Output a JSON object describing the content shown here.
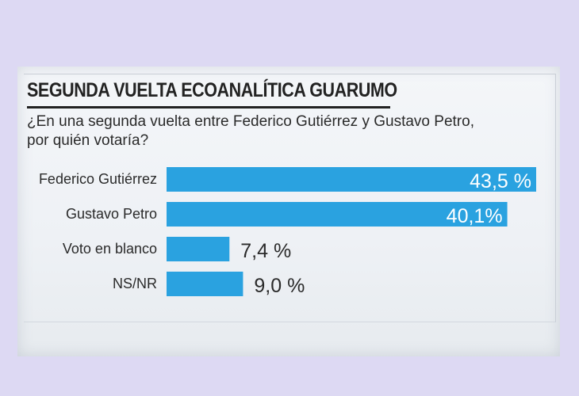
{
  "title": "SEGUNDA VUELTA ECOANALÍTICA GUARUMO",
  "question_line1": "¿En una segunda vuelta entre Federico Gutiérrez y Gustavo Petro,",
  "question_line2": "por quién votaría?",
  "colors": {
    "bar": "#2aa2e0",
    "background": "#ddd9f3"
  },
  "chart_data": {
    "type": "bar",
    "orientation": "horizontal",
    "title": "SEGUNDA VUELTA ECOANALÍTICA GUARUMO",
    "categories": [
      "Federico Gutiérrez",
      "Gustavo Petro",
      "Voto en blanco",
      "NS/NR"
    ],
    "values": [
      43.5,
      40.1,
      7.4,
      9.0
    ],
    "value_labels": [
      "43,5 %",
      "40,1%",
      "7,4 %",
      "9,0 %"
    ],
    "unit": "%",
    "xlim": [
      0,
      43.5
    ],
    "grid": false,
    "legend": "none"
  }
}
